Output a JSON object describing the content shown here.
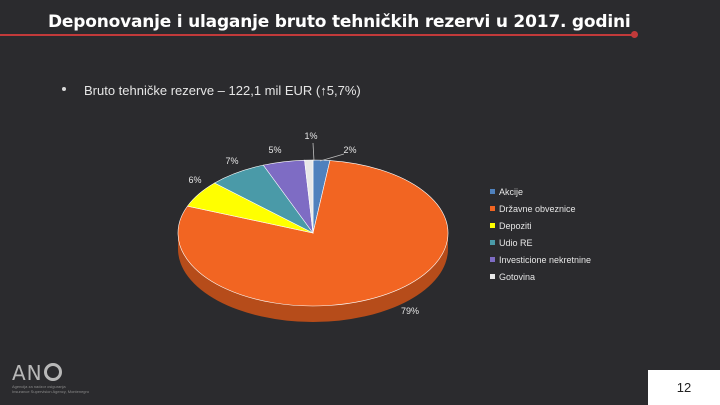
{
  "slide": {
    "title": "Deponovanje i ulaganje bruto tehničkih rezervi u 2017. godini",
    "bullet": "Bruto tehničke rezerve – 122,1 mil EUR (↑5,7%)",
    "page_number": "12"
  },
  "logo": {
    "mark": "AN",
    "sub_line1": "Agencija za nadzor osiguranja",
    "sub_line2": "Insurance Supervision Agency, Montenegro"
  },
  "chart_data": {
    "type": "pie",
    "style": "3d",
    "categories": [
      "Akcije",
      "Državne obveznice",
      "Depoziti",
      "Udio RE",
      "Investicione nekretnine",
      "Gotovina"
    ],
    "values": [
      2,
      79,
      6,
      7,
      5,
      1
    ],
    "labels": [
      "2%",
      "79%",
      "6%",
      "7%",
      "5%",
      "1%"
    ],
    "colors": [
      "#4f81bd",
      "#f26522",
      "#ffff00",
      "#4a9aa8",
      "#7e6cc4",
      "#e8e8e8"
    ],
    "legend_position": "right"
  }
}
